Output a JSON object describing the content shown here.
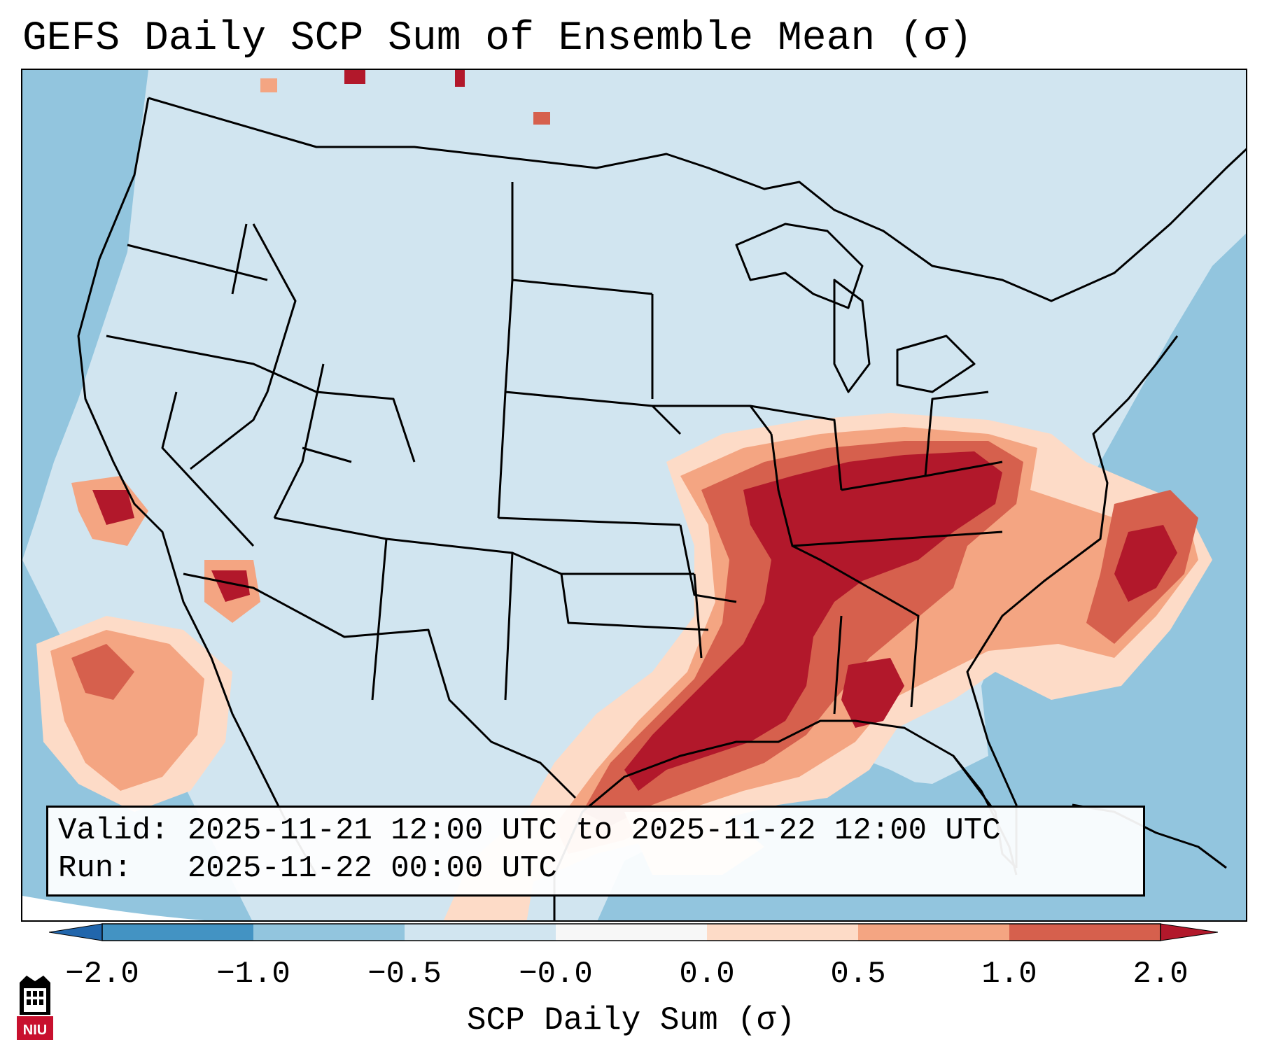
{
  "title": "GEFS Daily SCP Sum of Ensemble Mean (σ)",
  "info": {
    "valid_line": "Valid: 2025-11-21 12:00 UTC to 2025-11-22 12:00 UTC",
    "run_line": "Run:   2025-11-22 00:00 UTC"
  },
  "colorbar": {
    "label": "SCP Daily Sum (σ)",
    "ticks": [
      "−2.0",
      "−1.0",
      "−0.5",
      "−0.0",
      "0.0",
      "0.5",
      "1.0",
      "2.0"
    ],
    "colors": [
      "#4393c3",
      "#92c5de",
      "#d1e5f0",
      "#f7f7f7",
      "#fddbc7",
      "#f4a582",
      "#d6604d"
    ],
    "under_color": "#2166ac",
    "over_color": "#b2182b"
  },
  "map": {
    "ocean_color": "#92c5de",
    "land_color": "#d1e5f0",
    "high_color": "#b2182b",
    "mid_color": "#d6604d",
    "low_color": "#f4a582",
    "faint_color": "#fddbc7"
  },
  "logo": {
    "icon": "niu-logo-icon",
    "text": "NIU"
  }
}
